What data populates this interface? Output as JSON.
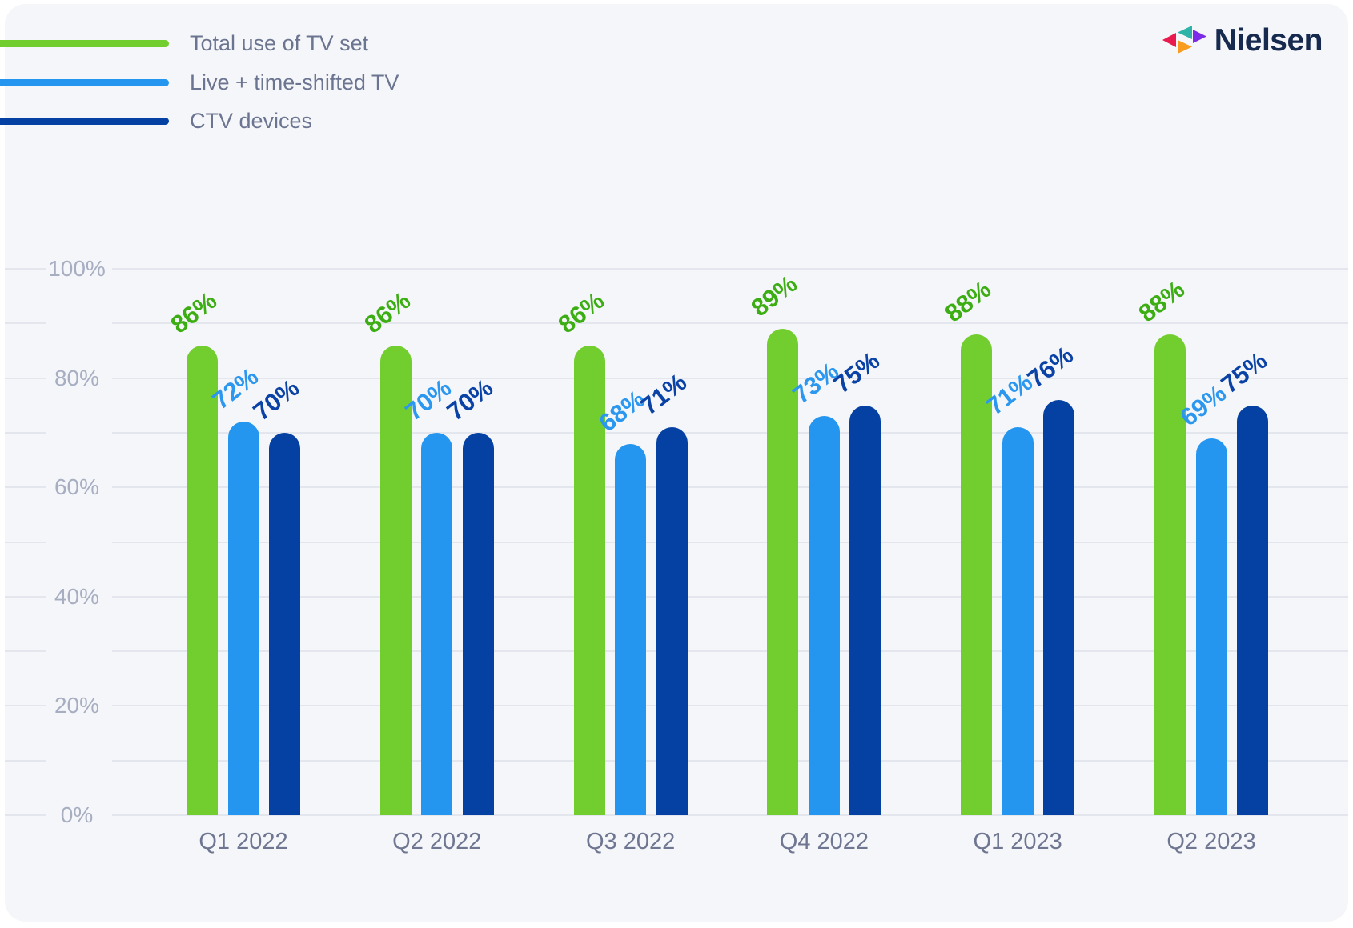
{
  "brand": {
    "wordmark": "Nielsen",
    "wordmark_color": "#16294e",
    "mark_colors": {
      "crimson": "#e81a4e",
      "teal": "#2eb3a9",
      "purple": "#7c2be8",
      "orange": "#f99b1c"
    }
  },
  "legend": {
    "items": [
      {
        "label": "Total use of TV set",
        "color": "#72ce2f"
      },
      {
        "label": "Live + time-shifted TV",
        "color": "#2596ef"
      },
      {
        "label": "CTV devices",
        "color": "#0441a3"
      }
    ]
  },
  "chart_data": {
    "type": "bar",
    "title": "",
    "xlabel": "",
    "ylabel": "",
    "ylim": [
      0,
      100
    ],
    "grid": "horizontal, every 10%, label gap on left",
    "legend_position": "top-left",
    "y_tick_labels": [
      "100%",
      "80%",
      "60%",
      "40%",
      "20%",
      "0%"
    ],
    "categories": [
      "Q1 2022",
      "Q2 2022",
      "Q3 2022",
      "Q4 2022",
      "Q1 2023",
      "Q2 2023"
    ],
    "series": [
      {
        "name": "Total use of TV set",
        "bar_color": "#72ce2f",
        "label_color": "#3cae14",
        "values": [
          86,
          86,
          86,
          89,
          88,
          88
        ],
        "labels": [
          "86%",
          "86%",
          "86%",
          "89%",
          "88%",
          "88%"
        ]
      },
      {
        "name": "Live + time-shifted TV",
        "bar_color": "#2596ef",
        "label_color": "#2b97ef",
        "values": [
          72,
          70,
          68,
          73,
          71,
          69
        ],
        "labels": [
          "72%",
          "70%",
          "68%",
          "73%",
          "71%",
          "69%"
        ]
      },
      {
        "name": "CTV devices",
        "bar_color": "#0441a3",
        "label_color": "#0a42a6",
        "values": [
          70,
          70,
          71,
          75,
          76,
          75
        ],
        "labels": [
          "70%",
          "70%",
          "71%",
          "75%",
          "76%",
          "75%"
        ]
      }
    ]
  },
  "style": {
    "page_bg": "#ffffff",
    "card_bg": "#f5f6f9",
    "gridline_color": "#e4e6ed",
    "ytick_color": "#a7aec2",
    "xtick_color": "#6e7691",
    "legend_text_color": "#6b7490"
  }
}
